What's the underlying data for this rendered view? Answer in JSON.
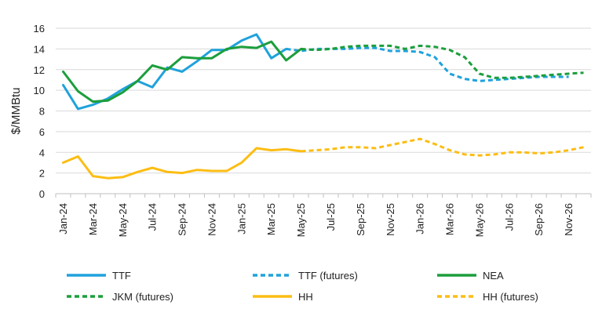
{
  "chart_data": {
    "type": "line",
    "title": "",
    "ylabel": "$/MMBtu",
    "xlabel": "",
    "ylim": [
      0,
      16
    ],
    "yticks": [
      0,
      2,
      4,
      6,
      8,
      10,
      12,
      14,
      16
    ],
    "grid": true,
    "legend_position": "bottom",
    "months": [
      "Jan-24",
      "Feb-24",
      "Mar-24",
      "Apr-24",
      "May-24",
      "Jun-24",
      "Jul-24",
      "Aug-24",
      "Sep-24",
      "Oct-24",
      "Nov-24",
      "Dec-24",
      "Jan-25",
      "Feb-25",
      "Mar-25",
      "Apr-25",
      "May-25",
      "Jun-25",
      "Jul-25",
      "Aug-25",
      "Sep-25",
      "Oct-25",
      "Nov-25",
      "Dec-25",
      "Jan-26",
      "Feb-26",
      "Mar-26",
      "Apr-26",
      "May-26",
      "Jun-26",
      "Jul-26",
      "Aug-26",
      "Sep-26",
      "Oct-26",
      "Nov-26",
      "Dec-26"
    ],
    "tick_labels": [
      "Jan-24",
      "Mar-24",
      "May-24",
      "Jul-24",
      "Sep-24",
      "Nov-24",
      "Jan-25",
      "Mar-25",
      "May-25",
      "Jul-25",
      "Sep-25",
      "Nov-25",
      "Jan-26",
      "Mar-26",
      "May-26",
      "Jul-26",
      "Sep-26",
      "Nov-26"
    ],
    "series": [
      {
        "name": "TTF",
        "color": "#1fa2dc",
        "dashed": false,
        "start_index": 0,
        "values": [
          10.5,
          8.2,
          8.6,
          9.2,
          10.1,
          10.9,
          10.3,
          12.2,
          11.8,
          12.8,
          13.9,
          13.9,
          14.8,
          15.4,
          13.1,
          14.0
        ]
      },
      {
        "name": "TTF (futures)",
        "color": "#1fa2dc",
        "dashed": true,
        "start_index": 15,
        "values": [
          14.0,
          13.8,
          14.0,
          14.0,
          14.0,
          14.1,
          14.1,
          13.8,
          13.8,
          13.7,
          13.2,
          11.6,
          11.1,
          10.9,
          11.0,
          11.1,
          11.2,
          11.3,
          11.3,
          11.3
        ]
      },
      {
        "name": "NEA",
        "color": "#1c9e3c",
        "dashed": false,
        "start_index": 0,
        "values": [
          11.8,
          9.9,
          8.9,
          9.0,
          9.8,
          10.9,
          12.4,
          12.0,
          13.2,
          13.1,
          13.1,
          14.0,
          14.2,
          14.1,
          14.7,
          12.9,
          14.0
        ]
      },
      {
        "name": "JKM (futures)",
        "color": "#1c9e3c",
        "dashed": true,
        "start_index": 16,
        "values": [
          14.0,
          13.9,
          14.0,
          14.2,
          14.3,
          14.3,
          14.3,
          14.0,
          14.3,
          14.2,
          13.9,
          13.2,
          11.6,
          11.2,
          11.2,
          11.3,
          11.4,
          11.5,
          11.6,
          11.7
        ]
      },
      {
        "name": "HH",
        "color": "#fcbd14",
        "dashed": false,
        "start_index": 0,
        "values": [
          3.0,
          3.6,
          1.7,
          1.5,
          1.6,
          2.1,
          2.5,
          2.1,
          2.0,
          2.3,
          2.2,
          2.2,
          3.0,
          4.4,
          4.2,
          4.3,
          4.1
        ]
      },
      {
        "name": "HH (futures)",
        "color": "#fcbd14",
        "dashed": true,
        "start_index": 16,
        "values": [
          4.1,
          4.2,
          4.3,
          4.5,
          4.5,
          4.4,
          4.7,
          5.0,
          5.3,
          4.8,
          4.2,
          3.8,
          3.7,
          3.8,
          4.0,
          4.0,
          3.9,
          4.0,
          4.2,
          4.5
        ]
      }
    ]
  },
  "legend": [
    {
      "label": "TTF",
      "color": "#1fa2dc",
      "dashed": false
    },
    {
      "label": "TTF (futures)",
      "color": "#1fa2dc",
      "dashed": true
    },
    {
      "label": "NEA",
      "color": "#1c9e3c",
      "dashed": false
    },
    {
      "label": "JKM (futures)",
      "color": "#1c9e3c",
      "dashed": true
    },
    {
      "label": "HH",
      "color": "#fcbd14",
      "dashed": false
    },
    {
      "label": "HH (futures)",
      "color": "#fcbd14",
      "dashed": true
    }
  ]
}
